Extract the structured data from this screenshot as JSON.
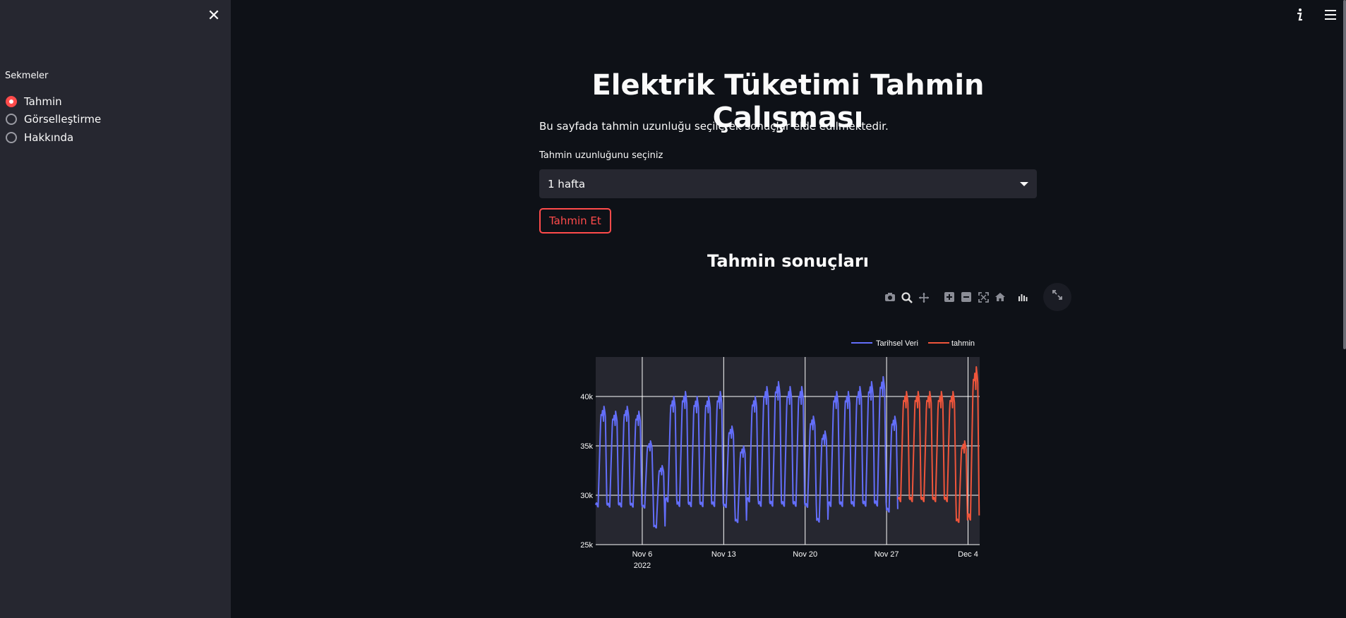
{
  "sidebar": {
    "close_label": "✕",
    "radio_label": "Sekmeler",
    "options": [
      {
        "label": "Tahmin",
        "selected": true
      },
      {
        "label": "Görselleştirme",
        "selected": false
      },
      {
        "label": "Hakkında",
        "selected": false
      }
    ]
  },
  "header": {
    "info_icon": "info-icon",
    "menu_icon": "hamburger-menu-icon"
  },
  "main": {
    "title": "Elektrik Tüketimi Tahmin Çalışması",
    "description": "Bu sayfada tahmin uzunluğu seçilerek sonuçlar elde edilmektedir.",
    "select_label": "Tahmin uzunluğunu seçiniz",
    "select_value": "1 hafta",
    "button_label": "Tahmin Et",
    "results_title": "Tahmin sonuçları"
  },
  "colors": {
    "accent": "#ff4b4b",
    "historical": "#636efa",
    "forecast": "#ef553b"
  },
  "chart_data": {
    "type": "line",
    "legend": [
      "Tarihsel Veri",
      "tahmin"
    ],
    "legend_position": "top-right",
    "x_ticks": [
      "Nov 6\n2022",
      "Nov 13",
      "Nov 20",
      "Nov 27",
      "Dec 4"
    ],
    "x_range": [
      "2022-11-02",
      "2022-12-05"
    ],
    "y_ticks": [
      "25k",
      "30k",
      "35k",
      "40k"
    ],
    "ylim": [
      25000,
      44000
    ],
    "grid": true,
    "series": [
      {
        "name": "Tarihsel Veri",
        "frequency": "hourly",
        "start": "2022-11-02",
        "end": "2022-11-28",
        "daily_peaks_approx": [
          39000,
          38500,
          39000,
          38500,
          35500,
          33000,
          40000,
          40500,
          40000,
          40000,
          40500,
          37000,
          35000,
          40000,
          41000,
          41500,
          41000,
          41000,
          38000,
          36500,
          40500,
          40500,
          41000,
          41500,
          42000,
          38000
        ],
        "daily_troughs_approx": [
          28500,
          28500,
          28500,
          28500,
          28500,
          26500,
          29000,
          28500,
          28500,
          28500,
          28500,
          28500,
          27000,
          29000,
          28500,
          28500,
          28500,
          28500,
          28500,
          27000,
          28500,
          28500,
          28500,
          28500,
          28500,
          28000
        ]
      },
      {
        "name": "tahmin",
        "frequency": "hourly",
        "start": "2022-11-28",
        "end": "2022-12-05",
        "daily_peaks_approx": [
          40500,
          40500,
          40500,
          40500,
          40500,
          35500,
          43000
        ],
        "daily_troughs_approx": [
          29000,
          29000,
          29000,
          29000,
          29000,
          27000,
          27000
        ]
      }
    ]
  }
}
